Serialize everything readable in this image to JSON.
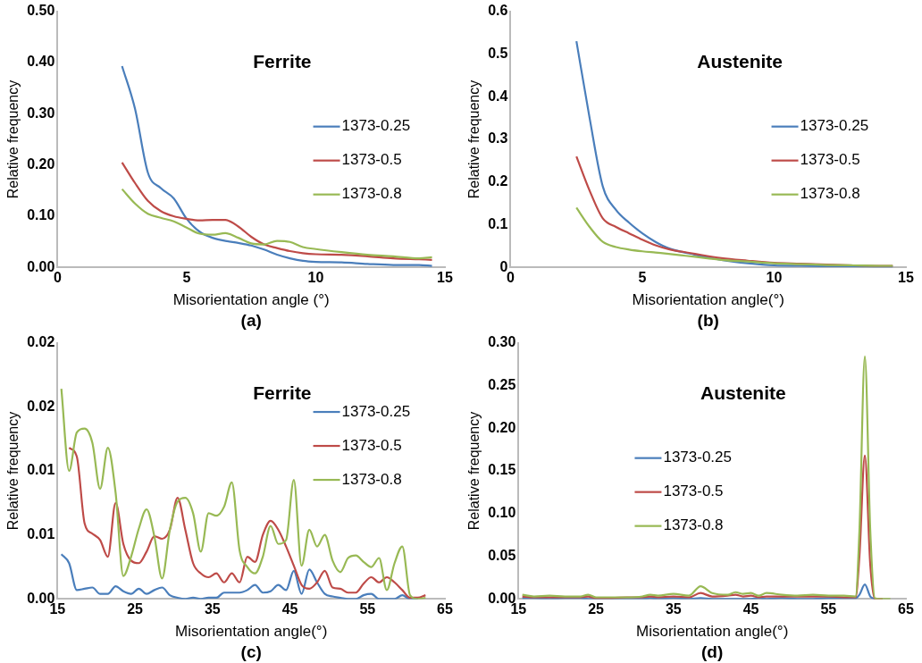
{
  "chart_data": [
    {
      "type": "line",
      "title": "Ferrite",
      "xlabel": "Misorientation angle (°)",
      "ylabel": "Relative frequency",
      "annotations": [
        "(a)"
      ],
      "legend": "center right",
      "grid": false,
      "marker": "none",
      "line_style": "solid",
      "xlim": [
        0,
        15
      ],
      "xticks": [
        0,
        5,
        10,
        15
      ],
      "ylim": [
        0,
        0.5
      ],
      "yticks": [
        {
          "value": 0,
          "label": "0.00"
        },
        {
          "value": 0.1,
          "label": "0.10"
        },
        {
          "value": 0.2,
          "label": "0.20"
        },
        {
          "value": 0.3,
          "label": "0.30"
        },
        {
          "value": 0.4,
          "label": "0.40"
        },
        {
          "value": 0.5,
          "label": "0.50"
        }
      ],
      "x": [
        2.5,
        3,
        3.5,
        4,
        4.5,
        5,
        5.5,
        6,
        6.5,
        7,
        7.5,
        8,
        8.5,
        9,
        9.5,
        10,
        11,
        12,
        13,
        14,
        14.5
      ],
      "series": [
        {
          "name": "1373-0.25",
          "color": "#4a7ebb",
          "values": [
            0.393,
            0.31,
            0.185,
            0.155,
            0.135,
            0.095,
            0.07,
            0.058,
            0.052,
            0.048,
            0.043,
            0.035,
            0.025,
            0.018,
            0.013,
            0.011,
            0.01,
            0.007,
            0.005,
            0.005,
            0.003
          ]
        },
        {
          "name": "1373-0.5",
          "color": "#be4b48",
          "values": [
            0.205,
            0.165,
            0.13,
            0.11,
            0.1,
            0.095,
            0.092,
            0.093,
            0.093,
            0.08,
            0.06,
            0.045,
            0.038,
            0.032,
            0.028,
            0.026,
            0.025,
            0.022,
            0.018,
            0.016,
            0.015
          ]
        },
        {
          "name": "1373-0.8",
          "color": "#98b954",
          "values": [
            0.153,
            0.125,
            0.105,
            0.097,
            0.09,
            0.078,
            0.066,
            0.064,
            0.067,
            0.058,
            0.047,
            0.045,
            0.052,
            0.05,
            0.04,
            0.036,
            0.03,
            0.025,
            0.022,
            0.018,
            0.02
          ]
        }
      ]
    },
    {
      "type": "line",
      "title": "Austenite",
      "xlabel": "Misorientation angle(°)",
      "ylabel": "Relative frequency",
      "annotations": [
        "(b)"
      ],
      "legend": "center right",
      "grid": false,
      "marker": "none",
      "line_style": "solid",
      "xlim": [
        0,
        15
      ],
      "xticks": [
        0,
        5,
        10,
        15
      ],
      "ylim": [
        0,
        0.6
      ],
      "yticks": [
        0,
        0.1,
        0.2,
        0.3,
        0.4,
        0.5,
        0.6
      ],
      "x": [
        2.5,
        3,
        3.5,
        4,
        4.5,
        5,
        5.5,
        6,
        7,
        8,
        9,
        10,
        11,
        12,
        13,
        14,
        14.5
      ],
      "series": [
        {
          "name": "1373-0.25",
          "color": "#4a7ebb",
          "values": [
            0.53,
            0.35,
            0.19,
            0.135,
            0.105,
            0.08,
            0.06,
            0.045,
            0.03,
            0.018,
            0.01,
            0.005,
            0.004,
            0.003,
            0.003,
            0.002,
            0.002
          ]
        },
        {
          "name": "1373-0.5",
          "color": "#be4b48",
          "values": [
            0.26,
            0.18,
            0.115,
            0.095,
            0.08,
            0.065,
            0.052,
            0.043,
            0.032,
            0.022,
            0.016,
            0.011,
            0.009,
            0.007,
            0.005,
            0.004,
            0.004
          ]
        },
        {
          "name": "1373-0.8",
          "color": "#98b954",
          "values": [
            0.14,
            0.095,
            0.06,
            0.048,
            0.042,
            0.038,
            0.035,
            0.032,
            0.025,
            0.018,
            0.014,
            0.01,
            0.008,
            0.006,
            0.005,
            0.004,
            0.004
          ]
        }
      ]
    },
    {
      "type": "line",
      "title": "Ferrite",
      "xlabel": "Misorientation angle(°)",
      "ylabel": "Relative frequency",
      "annotations": [
        "(c)"
      ],
      "legend": "top right",
      "grid": false,
      "marker": "none",
      "line_style": "solid",
      "xlim": [
        15,
        65
      ],
      "xticks": [
        15,
        25,
        35,
        45,
        55,
        65
      ],
      "ylim": [
        0,
        0.02
      ],
      "yticks": [
        {
          "value": 0,
          "label": "0.00"
        },
        {
          "value": 0.005,
          "label": "0.01"
        },
        {
          "value": 0.01,
          "label": "0.01"
        },
        {
          "value": 0.015,
          "label": "0.02"
        },
        {
          "value": 0.02,
          "label": "0.02"
        }
      ],
      "x": [
        15.5,
        16.5,
        17.5,
        18.5,
        19.5,
        20.5,
        21.5,
        22.5,
        23.5,
        24.5,
        25.5,
        26.5,
        27.5,
        28.5,
        29.5,
        30.5,
        31.5,
        32.5,
        33.5,
        34.5,
        35.5,
        36.5,
        37.5,
        38.5,
        39.5,
        40.5,
        41.5,
        42.5,
        43.5,
        44.5,
        45.5,
        46.5,
        47.5,
        48.5,
        49.5,
        50.5,
        51.5,
        52.5,
        53.5,
        54.5,
        55.5,
        56.5,
        57.5,
        58.5,
        59.5,
        60.5,
        61.5,
        62.5
      ],
      "series": [
        {
          "name": "1373-0.25",
          "color": "#4a7ebb",
          "values": [
            0.0035,
            0.0028,
            0.0007,
            0.0008,
            0.0009,
            0.0004,
            0.0004,
            0.001,
            0.0006,
            0.0004,
            0.0008,
            0.0004,
            0.0007,
            0.0009,
            0.0003,
            0.0001,
            0,
            0.0001,
            0,
            0.0001,
            0.0001,
            0.0005,
            0.0005,
            0.0005,
            0.0007,
            0.0011,
            0.0005,
            0.0006,
            0.0011,
            0.0007,
            0.0022,
            0.0004,
            0.0023,
            0.0013,
            0.0004,
            0.0002,
            0.0001,
            0,
            0,
            0.0003,
            0.0004,
            0,
            0,
            0,
            0.0003,
            0,
            0,
            null
          ]
        },
        {
          "name": "1373-0.5",
          "color": "#be4b48",
          "values": [
            null,
            0.0118,
            0.0111,
            0.0059,
            0.0051,
            0.0046,
            0.0033,
            0.0075,
            0.0043,
            0.003,
            0.0028,
            0.0037,
            0.0049,
            0.0047,
            0.0054,
            0.0079,
            0.0054,
            0.0028,
            0.002,
            0.0017,
            0.002,
            0.0013,
            0.002,
            0.0013,
            0.0033,
            0.0029,
            0.005,
            0.0061,
            0.0054,
            0.0041,
            0.0026,
            0.0011,
            0.0008,
            0.0013,
            0.0022,
            0.0009,
            0.0008,
            0.0005,
            0.0005,
            0.0012,
            0.0017,
            0.0013,
            0.0017,
            0.0013,
            0.0007,
            0.0001,
            0.0001,
            0.0003
          ]
        },
        {
          "name": "1373-0.8",
          "color": "#98b954",
          "values": [
            0.0164,
            0.01,
            0.013,
            0.0133,
            0.0122,
            0.0086,
            0.0118,
            0.0083,
            0.0018,
            0.0033,
            0.0055,
            0.007,
            0.0049,
            0.0016,
            0.0054,
            0.0076,
            0.0079,
            0.0067,
            0.0037,
            0.0067,
            0.0065,
            0.0072,
            0.0091,
            0.0038,
            0.0025,
            0.002,
            0.0033,
            0.0057,
            0.0043,
            0.0046,
            0.0093,
            0.0026,
            0.0054,
            0.0041,
            0.005,
            0.003,
            0.0021,
            0.0032,
            0.0034,
            0.0029,
            0.0025,
            0.0032,
            0.0007,
            0.0028,
            0.0041,
            0.0003,
            0,
            0.0001
          ]
        }
      ]
    },
    {
      "type": "line",
      "title": "Austenite",
      "xlabel": "Misorientation angle(°)",
      "ylabel": "Relative frequency",
      "annotations": [
        "(d)"
      ],
      "legend": "center left",
      "grid": false,
      "marker": "none",
      "line_style": "solid",
      "xlim": [
        15,
        65
      ],
      "xticks": [
        15,
        25,
        35,
        45,
        55,
        65
      ],
      "ylim": [
        0,
        0.3
      ],
      "yticks": [
        {
          "value": 0,
          "label": "0.00"
        },
        {
          "value": 0.05,
          "label": "0.05"
        },
        {
          "value": 0.1,
          "label": "0.10"
        },
        {
          "value": 0.15,
          "label": "0.15"
        },
        {
          "value": 0.2,
          "label": "0.20"
        },
        {
          "value": 0.25,
          "label": "0.25"
        },
        {
          "value": 0.3,
          "label": "0.30"
        }
      ],
      "x": [
        15.5,
        17,
        19,
        21,
        23,
        24,
        25,
        27,
        29,
        31,
        32,
        33,
        35,
        37,
        38.5,
        40,
        42,
        43,
        44,
        45,
        46,
        47,
        49,
        51,
        53,
        55,
        57,
        58.5,
        59,
        59.7,
        60.4,
        61,
        62,
        63
      ],
      "series": [
        {
          "name": "1373-0.25",
          "color": "#4a7ebb",
          "values": [
            0.001,
            0.001,
            0,
            0.001,
            0.001,
            0,
            0,
            0,
            0,
            0,
            0.001,
            0,
            0.001,
            0,
            0.001,
            0,
            0,
            0,
            0,
            0,
            0.001,
            0,
            0.001,
            0,
            0,
            0.001,
            0.001,
            0.001,
            0.005,
            0.017,
            0.003,
            0,
            null,
            null
          ]
        },
        {
          "name": "1373-0.5",
          "color": "#be4b48",
          "values": [
            0.003,
            0.002,
            0.002,
            0.002,
            0.002,
            0.003,
            0.001,
            0.001,
            0.002,
            0.002,
            0.003,
            0.002,
            0.003,
            0.002,
            0.007,
            0.003,
            0.004,
            0.005,
            0.003,
            0.004,
            0.002,
            0.003,
            0.003,
            0.003,
            0.003,
            0.003,
            0.002,
            0.002,
            0.05,
            0.168,
            0.04,
            0,
            0,
            null
          ]
        },
        {
          "name": "1373-0.8",
          "color": "#98b954",
          "values": [
            0.005,
            0.003,
            0.004,
            0.003,
            0.003,
            0.005,
            0.002,
            0.002,
            0.002,
            0.003,
            0.005,
            0.004,
            0.006,
            0.004,
            0.015,
            0.007,
            0.005,
            0.008,
            0.006,
            0.007,
            0.004,
            0.007,
            0.005,
            0.004,
            0.005,
            0.004,
            0.004,
            0.003,
            0.08,
            0.284,
            0.08,
            0.001,
            0,
            0
          ]
        }
      ]
    }
  ]
}
